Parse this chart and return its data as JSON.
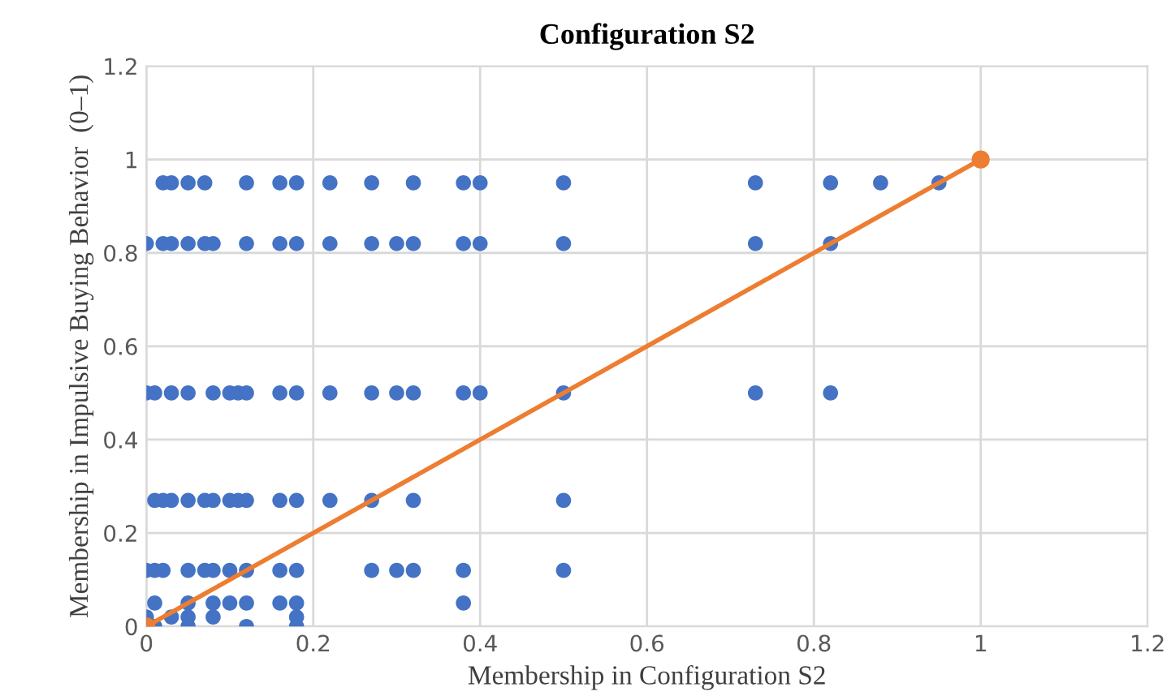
{
  "chart_data": {
    "type": "scatter",
    "title": "Configuration S2",
    "xlabel": "Membership in Configuration S2",
    "ylabel": "Membership in Impulsive Buying Behavior  (0–1)",
    "xlim": [
      0,
      1.2
    ],
    "ylim": [
      0,
      1.2
    ],
    "xticks": [
      0,
      0.2,
      0.4,
      0.6,
      0.8,
      1,
      1.2
    ],
    "yticks": [
      0,
      0.2,
      0.4,
      0.6,
      0.8,
      1,
      1.2
    ],
    "grid": true,
    "marker": "circle",
    "series": [
      {
        "color": "#4472c4",
        "x": [
          0.02,
          0.03,
          0.05,
          0.07,
          0.12,
          0.16,
          0.18,
          0.22,
          0.27,
          0.32,
          0.38,
          0.4,
          0.5,
          0.73,
          0.82,
          0.88,
          0.95,
          0,
          0.02,
          0.03,
          0.05,
          0.07,
          0.08,
          0.12,
          0.16,
          0.18,
          0.22,
          0.27,
          0.3,
          0.32,
          0.38,
          0.4,
          0.5,
          0.73,
          0.82,
          0,
          0.01,
          0.03,
          0.05,
          0.08,
          0.1,
          0.11,
          0.12,
          0.16,
          0.18,
          0.22,
          0.27,
          0.3,
          0.32,
          0.38,
          0.4,
          0.5,
          0.73,
          0.82,
          0.01,
          0.02,
          0.03,
          0.05,
          0.07,
          0.08,
          0.1,
          0.11,
          0.12,
          0.16,
          0.18,
          0.22,
          0.27,
          0.32,
          0.5,
          0,
          0.01,
          0.02,
          0.05,
          0.07,
          0.08,
          0.1,
          0.12,
          0.16,
          0.18,
          0.27,
          0.3,
          0.32,
          0.38,
          0.5,
          0.01,
          0.05,
          0.08,
          0.1,
          0.12,
          0.16,
          0.18,
          0.38,
          0,
          0.03,
          0.05,
          0.08,
          0.18,
          0.01,
          0.05,
          0.12,
          0.18
        ],
        "values": [
          0.95,
          0.95,
          0.95,
          0.95,
          0.95,
          0.95,
          0.95,
          0.95,
          0.95,
          0.95,
          0.95,
          0.95,
          0.95,
          0.95,
          0.95,
          0.95,
          0.95,
          0.82,
          0.82,
          0.82,
          0.82,
          0.82,
          0.82,
          0.82,
          0.82,
          0.82,
          0.82,
          0.82,
          0.82,
          0.82,
          0.82,
          0.82,
          0.82,
          0.82,
          0.82,
          0.5,
          0.5,
          0.5,
          0.5,
          0.5,
          0.5,
          0.5,
          0.5,
          0.5,
          0.5,
          0.5,
          0.5,
          0.5,
          0.5,
          0.5,
          0.5,
          0.5,
          0.5,
          0.5,
          0.27,
          0.27,
          0.27,
          0.27,
          0.27,
          0.27,
          0.27,
          0.27,
          0.27,
          0.27,
          0.27,
          0.27,
          0.27,
          0.27,
          0.27,
          0.12,
          0.12,
          0.12,
          0.12,
          0.12,
          0.12,
          0.12,
          0.12,
          0.12,
          0.12,
          0.12,
          0.12,
          0.12,
          0.12,
          0.12,
          0.05,
          0.05,
          0.05,
          0.05,
          0.05,
          0.05,
          0.05,
          0.05,
          0.02,
          0.02,
          0.02,
          0.02,
          0.02,
          0,
          0,
          0,
          0
        ]
      },
      {
        "color": "#ed7d31",
        "type": "line",
        "x": [
          0,
          1
        ],
        "values": [
          0,
          1
        ]
      }
    ]
  }
}
